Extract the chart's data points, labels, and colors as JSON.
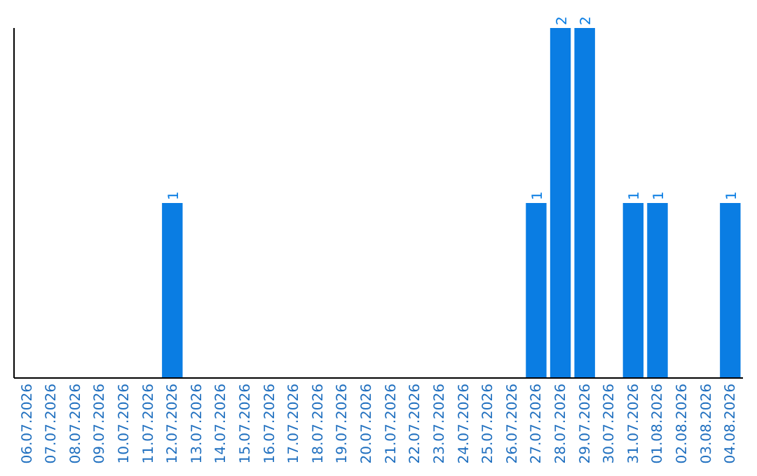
{
  "chart_data": {
    "type": "bar",
    "categories": [
      "06.07.2026",
      "07.07.2026",
      "08.07.2026",
      "09.07.2026",
      "10.07.2026",
      "11.07.2026",
      "12.07.2026",
      "13.07.2026",
      "14.07.2026",
      "15.07.2026",
      "16.07.2026",
      "17.07.2026",
      "18.07.2026",
      "19.07.2026",
      "20.07.2026",
      "21.07.2026",
      "22.07.2026",
      "23.07.2026",
      "24.07.2026",
      "25.07.2026",
      "26.07.2026",
      "27.07.2026",
      "28.07.2026",
      "29.07.2026",
      "30.07.2026",
      "31.07.2026",
      "01.08.2026",
      "02.08.2026",
      "03.08.2026",
      "04.08.2026"
    ],
    "values": [
      0,
      0,
      0,
      0,
      0,
      0,
      1,
      0,
      0,
      0,
      0,
      0,
      0,
      0,
      0,
      0,
      0,
      0,
      0,
      0,
      0,
      1,
      2,
      2,
      0,
      1,
      1,
      0,
      0,
      1
    ],
    "value_labels": [
      null,
      null,
      null,
      null,
      null,
      null,
      "1",
      null,
      null,
      null,
      null,
      null,
      null,
      null,
      null,
      null,
      null,
      null,
      null,
      null,
      null,
      "1",
      "2",
      "2",
      null,
      "1",
      "1",
      null,
      null,
      "1"
    ],
    "color": "#0a7de3",
    "ylim": [
      0,
      2
    ],
    "tick_labels": "x"
  }
}
